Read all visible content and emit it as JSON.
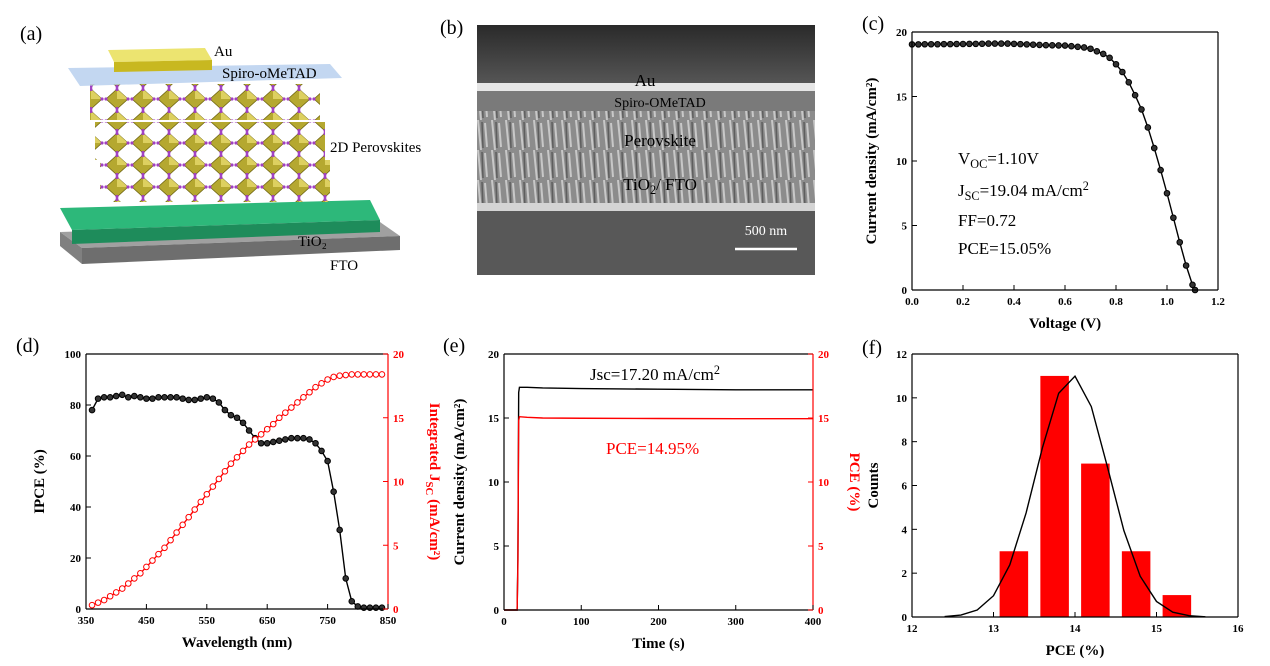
{
  "figure": {
    "panel_a": {
      "label": "(a)",
      "layers": [
        "Au",
        "Spiro-oMeTAD",
        "2D Perovskites",
        "TiO₂",
        "FTO"
      ]
    },
    "panel_b": {
      "label": "(b)",
      "layers": [
        "Au",
        "Spiro-OMeTAD",
        "Perovskite",
        [
          {
            "text": "TiO"
          },
          {
            "text": "2",
            "shift": "sub"
          },
          {
            "text": "/ FTO"
          }
        ]
      ],
      "scale_bar": "500 nm"
    }
  },
  "chart_data": [
    {
      "type": "line",
      "panel_label": "(c)",
      "xlabel": "Voltage (V)",
      "ylabel": "Current density (mA/cm²)",
      "xlim": [
        0,
        1.2
      ],
      "xticks": [
        {
          "value": 0,
          "label": "0.0"
        },
        0.2,
        0.4,
        0.6,
        0.8,
        {
          "value": 1,
          "label": "1.0"
        },
        1.2
      ],
      "ylim": [
        0,
        20
      ],
      "yticks": [
        0,
        5,
        10,
        15,
        20
      ],
      "series": [
        {
          "color": "#000000",
          "markers": true,
          "x": [
            0,
            0.025,
            0.05,
            0.075,
            0.1,
            0.125,
            0.15,
            0.175,
            0.2,
            0.225,
            0.25,
            0.275,
            0.3,
            0.325,
            0.35,
            0.375,
            0.4,
            0.425,
            0.45,
            0.475,
            0.5,
            0.525,
            0.55,
            0.575,
            0.6,
            0.625,
            0.65,
            0.675,
            0.7,
            0.725,
            0.75,
            0.775,
            0.8,
            0.825,
            0.85,
            0.875,
            0.9,
            0.925,
            0.95,
            0.975,
            1.0,
            1.025,
            1.05,
            1.075,
            1.1,
            1.11
          ],
          "values": [
            19.04,
            19.04,
            19.05,
            19.05,
            19.05,
            19.06,
            19.06,
            19.07,
            19.07,
            19.08,
            19.08,
            19.09,
            19.1,
            19.1,
            19.1,
            19.1,
            19.08,
            19.06,
            19.04,
            19.02,
            19.0,
            18.98,
            18.97,
            18.96,
            18.95,
            18.9,
            18.85,
            18.8,
            18.7,
            18.5,
            18.3,
            18.0,
            17.5,
            16.9,
            16.1,
            15.1,
            14.0,
            12.6,
            11.0,
            9.3,
            7.5,
            5.6,
            3.7,
            1.9,
            0.4,
            0
          ]
        }
      ],
      "annotations": [
        {
          "color": "#000000",
          "parts": [
            {
              "text": "V"
            },
            {
              "text": "OC",
              "shift": "sub"
            },
            {
              "text": "=1.10V"
            }
          ]
        },
        {
          "color": "#000000",
          "parts": [
            {
              "text": "J"
            },
            {
              "text": "SC",
              "shift": "sub"
            },
            {
              "text": "=19.04 mA/cm"
            },
            {
              "text": "2",
              "shift": "sup"
            }
          ]
        },
        {
          "color": "#000000",
          "parts": [
            {
              "text": "FF=0.72"
            }
          ]
        },
        {
          "color": "#000000",
          "parts": [
            {
              "text": "PCE=15.05%"
            }
          ]
        }
      ]
    },
    {
      "type": "line",
      "panel_label": "(d)",
      "xlabel": "Wavelength (nm)",
      "ylabel": "IPCE (%)",
      "y2label": [
        {
          "text": "Integrated J"
        },
        {
          "text": "SC",
          "shift": "sub"
        },
        {
          "text": " (mA/cm²)"
        }
      ],
      "y2color": "#ff0000",
      "xlim": [
        350,
        850
      ],
      "xticks": [
        350,
        450,
        550,
        650,
        750,
        850
      ],
      "ylim": [
        0,
        100
      ],
      "yticks": [
        0,
        20,
        40,
        60,
        80,
        100
      ],
      "y2lim": [
        0,
        20
      ],
      "y2ticks": [
        0,
        5,
        10,
        15,
        20
      ],
      "x": [
        360,
        370,
        380,
        390,
        400,
        410,
        420,
        430,
        440,
        450,
        460,
        470,
        480,
        490,
        500,
        510,
        520,
        530,
        540,
        550,
        560,
        570,
        580,
        590,
        600,
        610,
        620,
        630,
        640,
        650,
        660,
        670,
        680,
        690,
        700,
        710,
        720,
        730,
        740,
        750,
        760,
        770,
        780,
        790,
        800,
        810,
        820,
        830,
        840
      ],
      "series": [
        {
          "color": "#000000",
          "markers": true,
          "values": [
            78,
            82.5,
            83,
            83,
            83.5,
            84,
            83,
            83.5,
            83,
            82.5,
            82.5,
            83,
            83,
            83,
            83,
            82.5,
            82,
            82,
            82.5,
            83,
            82.5,
            81,
            78,
            76,
            75,
            73,
            70,
            67,
            65,
            65,
            65.5,
            66,
            66.5,
            67,
            67,
            67,
            66.5,
            65,
            62,
            58,
            46,
            31,
            12,
            3,
            1,
            0.5,
            0.5,
            0.5,
            0.5
          ]
        },
        {
          "color": "#ff0000",
          "markers": true,
          "axis": "y2",
          "values": [
            0.3,
            0.5,
            0.7,
            1.0,
            1.3,
            1.6,
            2.0,
            2.4,
            2.8,
            3.3,
            3.8,
            4.3,
            4.8,
            5.4,
            6.0,
            6.6,
            7.2,
            7.8,
            8.4,
            9.0,
            9.6,
            10.2,
            10.8,
            11.4,
            11.9,
            12.4,
            12.9,
            13.3,
            13.7,
            14.1,
            14.5,
            15.0,
            15.4,
            15.8,
            16.2,
            16.6,
            17.0,
            17.4,
            17.7,
            18.0,
            18.2,
            18.3,
            18.35,
            18.4,
            18.4,
            18.4,
            18.4,
            18.4,
            18.4
          ]
        }
      ]
    },
    {
      "type": "line",
      "panel_label": "(e)",
      "xlabel": "Time (s)",
      "ylabel": "Current density (mA/cm²)",
      "y2label": "PCE (%)",
      "y2color": "#ff0000",
      "xlim": [
        0,
        400
      ],
      "xticks": [
        0,
        100,
        200,
        300,
        400
      ],
      "ylim": [
        0,
        20
      ],
      "yticks": [
        0,
        5,
        10,
        15,
        20
      ],
      "y2lim": [
        0,
        20
      ],
      "y2ticks": [
        0,
        5,
        10,
        15,
        20
      ],
      "series": [
        {
          "color": "#000000",
          "markers": false,
          "x": [
            0,
            17,
            18,
            19,
            20,
            30,
            50,
            100,
            200,
            300,
            400
          ],
          "values": [
            0,
            0,
            4,
            17,
            17.4,
            17.4,
            17.35,
            17.3,
            17.25,
            17.2,
            17.2
          ]
        },
        {
          "color": "#ff0000",
          "markers": false,
          "axis": "y2",
          "x": [
            0,
            17,
            18,
            19,
            20,
            30,
            50,
            100,
            200,
            300,
            400
          ],
          "values": [
            0,
            0,
            3.5,
            14.8,
            15.1,
            15.05,
            15.0,
            14.98,
            14.96,
            14.95,
            14.95
          ]
        }
      ],
      "annotations": [
        {
          "color": "#000000",
          "parts": [
            {
              "text": "Jsc=17.20 mA/cm"
            },
            {
              "text": "2",
              "shift": "sup"
            }
          ]
        },
        {
          "color": "#ff0000",
          "parts": [
            {
              "text": "PCE=14.95%"
            }
          ]
        }
      ]
    },
    {
      "type": "histogram",
      "panel_label": "(f)",
      "xlabel": "PCE (%)",
      "ylabel": "Counts",
      "xlim": [
        12,
        16
      ],
      "xticks": [
        12,
        13,
        14,
        15,
        16
      ],
      "ylim": [
        0,
        12
      ],
      "yticks": [
        0,
        2,
        4,
        6,
        8,
        10,
        12
      ],
      "bins": [
        13,
        13.5,
        14,
        14.5,
        15,
        15.5
      ],
      "values": [
        3,
        11,
        7,
        3,
        1
      ],
      "color": "#ff0000",
      "series": [
        {
          "color": "#000000",
          "markers": false,
          "x": [
            12.4,
            12.6,
            12.8,
            13.0,
            13.2,
            13.4,
            13.6,
            13.8,
            14.0,
            14.2,
            14.4,
            14.6,
            14.8,
            15.0,
            15.2,
            15.4,
            15.6
          ],
          "values": [
            0.02,
            0.09,
            0.32,
            0.97,
            2.38,
            4.75,
            7.72,
            10.21,
            10.99,
            9.6,
            6.82,
            3.94,
            1.86,
            0.71,
            0.22,
            0.06,
            0.01
          ]
        }
      ]
    }
  ]
}
